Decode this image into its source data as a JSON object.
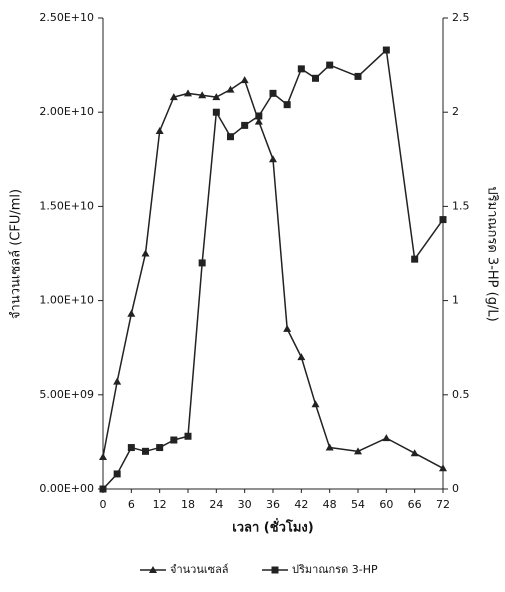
{
  "chart_data": {
    "type": "line",
    "x_label": "เวลา (ชั่วโมง)",
    "y_label": "จำนวนเซลล์ (CFU/ml)",
    "y2_label": "ปริมาณกรด 3-HP (g/L)",
    "x": [
      0,
      3,
      6,
      9,
      12,
      15,
      18,
      21,
      24,
      27,
      30,
      33,
      36,
      39,
      42,
      45,
      48,
      54,
      60,
      66,
      72
    ],
    "xlim": [
      0,
      72
    ],
    "xticks": [
      0,
      6,
      12,
      18,
      24,
      30,
      36,
      42,
      48,
      54,
      60,
      66,
      72
    ],
    "ylim": [
      0,
      25000000000
    ],
    "yticks": [
      {
        "value": 0,
        "label": "0.00E+00"
      },
      {
        "value": 5000000000,
        "label": "5.00E+09"
      },
      {
        "value": 10000000000,
        "label": "1.00E+10"
      },
      {
        "value": 15000000000,
        "label": "1.50E+10"
      },
      {
        "value": 20000000000,
        "label": "2.00E+10"
      },
      {
        "value": 25000000000,
        "label": "2.50E+10"
      }
    ],
    "y2lim": [
      0,
      2.5
    ],
    "y2ticks": [
      0,
      0.5,
      1,
      1.5,
      2,
      2.5
    ],
    "series": [
      {
        "name": "จำนวนเซลล์",
        "color": "#222222",
        "marker": "triangle",
        "values": [
          1700000000,
          5700000000,
          9300000000,
          12500000000,
          19000000000,
          20800000000,
          21000000000,
          20900000000,
          20800000000,
          21200000000,
          21700000000,
          19500000000,
          17500000000,
          8500000000,
          7000000000,
          4500000000,
          2200000000,
          2000000000,
          2700000000,
          1900000000,
          1100000000
        ]
      },
      {
        "name": "ปริมาณกรด 3-HP",
        "color": "#222222",
        "marker": "square",
        "axis": "y2",
        "values": [
          0,
          0.08,
          0.22,
          0.2,
          0.22,
          0.26,
          0.28,
          1.2,
          2.0,
          1.87,
          1.93,
          1.98,
          2.1,
          2.04,
          2.23,
          2.18,
          2.25,
          2.19,
          2.33,
          1.22,
          1.43
        ]
      }
    ]
  }
}
